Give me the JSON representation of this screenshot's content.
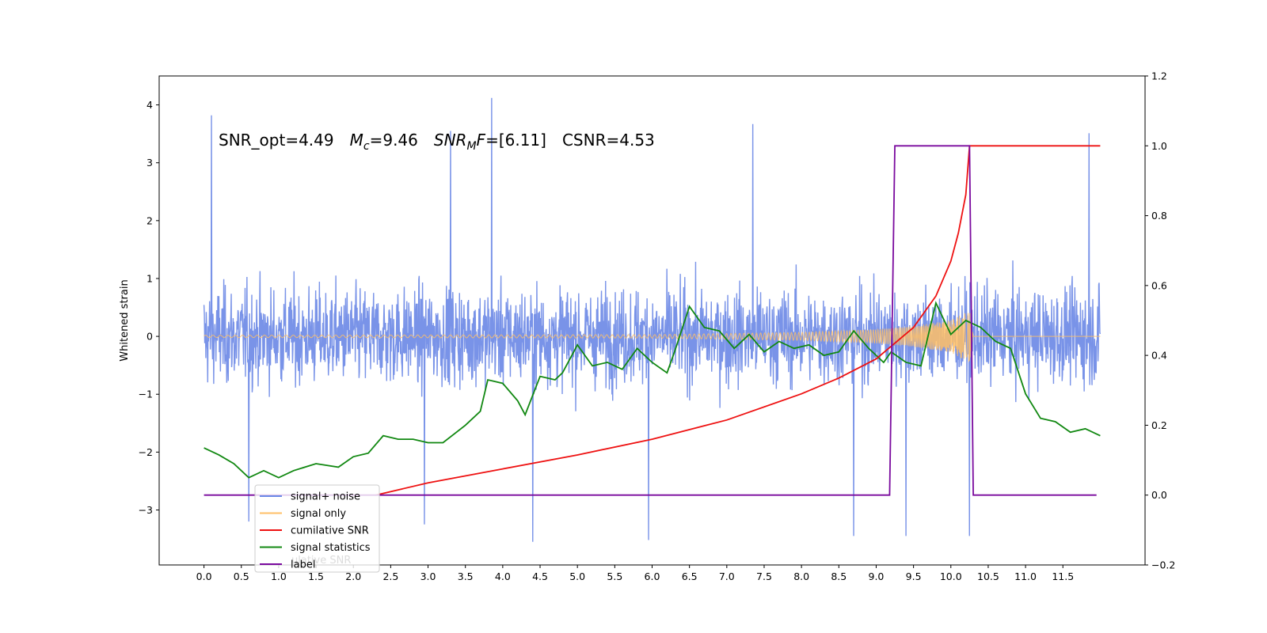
{
  "chart_data": {
    "type": "line",
    "ylabel": "Whitened strain",
    "annotation": {
      "snr_opt_label": "SNR_opt=4.49",
      "mc_symbol": "M",
      "mc_sub": "c",
      "mc_value": "=9.46",
      "snrmf_symbol": "SNR",
      "snrmf_sub": "M",
      "snrmf_tail": "F",
      "snrmf_value": "=[6.11]",
      "csnr_label": "CSNR=4.53"
    },
    "xlim": [
      -0.6,
      12.6
    ],
    "ylim_left": [
      -3.95,
      4.5
    ],
    "ylim_right": [
      -0.2,
      1.2
    ],
    "xticks": [
      0.0,
      0.5,
      1.0,
      1.5,
      2.0,
      2.5,
      3.0,
      3.5,
      4.0,
      4.5,
      5.0,
      5.5,
      6.0,
      6.5,
      7.0,
      7.5,
      8.0,
      8.5,
      9.0,
      9.5,
      10.0,
      10.5,
      11.0,
      11.5
    ],
    "xtick_labels": [
      "0.0",
      "0.5",
      "1.0",
      "1.5",
      "2.0",
      "2.5",
      "3.0",
      "3.5",
      "4.0",
      "4.5",
      "5.0",
      "5.5",
      "6.0",
      "6.5",
      "7.0",
      "7.5",
      "8.0",
      "8.5",
      "9.0",
      "9.5",
      "10.0",
      "10.5",
      "11.0",
      "11.5"
    ],
    "yticks_left": [
      -3,
      -2,
      -1,
      0,
      1,
      2,
      3,
      4
    ],
    "ytick_labels_left": [
      "−3",
      "−2",
      "−1",
      "0",
      "1",
      "2",
      "3",
      "4"
    ],
    "yticks_right": [
      -0.2,
      0.0,
      0.2,
      0.4,
      0.6,
      0.8,
      1.0,
      1.2
    ],
    "ytick_labels_right": [
      "−0.2",
      "0.0",
      "0.2",
      "0.4",
      "0.6",
      "0.8",
      "1.0",
      "1.2"
    ],
    "legend_position": "lower-left",
    "legend": [
      {
        "label": "signal+ noise",
        "color": "#6a87e6"
      },
      {
        "label": "signal only",
        "color": "#ffbf66"
      },
      {
        "label": "cumilative SNR",
        "color": "#ee1111"
      },
      {
        "label": "signal statistics",
        "color": "#118811"
      },
      {
        "label": "label",
        "color": "#7a0a9e"
      }
    ],
    "legend_ghost_text": "ulative SNR",
    "series": [
      {
        "name": "signal+ noise",
        "axis": "left",
        "color": "#6a87e6",
        "x_range": [
          0.0,
          12.0
        ],
        "envelope_typical": [
          -1.6,
          1.6
        ],
        "peaks": [
          {
            "x": 0.1,
            "y": 3.82
          },
          {
            "x": 3.85,
            "y": 4.12
          },
          {
            "x": 3.3,
            "y": 3.55
          },
          {
            "x": 7.35,
            "y": 3.67
          },
          {
            "x": 11.85,
            "y": 3.51
          },
          {
            "x": 4.4,
            "y": -3.55
          },
          {
            "x": 5.95,
            "y": -3.52
          },
          {
            "x": 9.4,
            "y": -3.45
          },
          {
            "x": 10.25,
            "y": -3.45
          },
          {
            "x": 8.7,
            "y": -3.45
          },
          {
            "x": 2.95,
            "y": -3.25
          },
          {
            "x": 0.6,
            "y": -3.2
          }
        ]
      },
      {
        "name": "signal only",
        "axis": "left",
        "color": "#ffbf66",
        "x": [
          0.0,
          6.0,
          7.0,
          8.0,
          9.0,
          9.5,
          10.0,
          10.25,
          10.3,
          12.0
        ],
        "envelope": [
          0.02,
          0.03,
          0.05,
          0.07,
          0.12,
          0.18,
          0.28,
          0.45,
          0.0,
          0.0
        ]
      },
      {
        "name": "cumilative SNR",
        "axis": "right",
        "color": "#ee1111",
        "x": [
          2.3,
          3.0,
          4.0,
          5.0,
          6.0,
          7.0,
          8.0,
          8.5,
          9.0,
          9.5,
          9.8,
          10.0,
          10.1,
          10.2,
          10.25,
          10.28,
          12.0
        ],
        "y": [
          0.0,
          0.035,
          0.075,
          0.115,
          0.16,
          0.215,
          0.29,
          0.335,
          0.39,
          0.48,
          0.57,
          0.67,
          0.75,
          0.86,
          1.0,
          1.0,
          1.0
        ]
      },
      {
        "name": "signal statistics",
        "axis": "right",
        "color": "#118811",
        "x": [
          0.0,
          0.2,
          0.4,
          0.6,
          0.8,
          1.0,
          1.2,
          1.5,
          1.8,
          2.0,
          2.2,
          2.4,
          2.6,
          2.8,
          3.0,
          3.2,
          3.5,
          3.7,
          3.8,
          4.0,
          4.2,
          4.3,
          4.5,
          4.7,
          4.8,
          5.0,
          5.2,
          5.4,
          5.6,
          5.8,
          6.0,
          6.2,
          6.3,
          6.5,
          6.7,
          6.9,
          7.1,
          7.3,
          7.5,
          7.7,
          7.9,
          8.1,
          8.3,
          8.5,
          8.7,
          8.9,
          9.1,
          9.2,
          9.4,
          9.6,
          9.8,
          10.0,
          10.2,
          10.4,
          10.6,
          10.8,
          11.0,
          11.2,
          11.4,
          11.6,
          11.8,
          12.0
        ],
        "y": [
          0.135,
          0.115,
          0.09,
          0.05,
          0.07,
          0.05,
          0.07,
          0.09,
          0.08,
          0.11,
          0.12,
          0.17,
          0.16,
          0.16,
          0.15,
          0.15,
          0.2,
          0.24,
          0.33,
          0.32,
          0.27,
          0.23,
          0.34,
          0.33,
          0.35,
          0.43,
          0.37,
          0.38,
          0.36,
          0.42,
          0.38,
          0.35,
          0.41,
          0.54,
          0.48,
          0.47,
          0.42,
          0.46,
          0.41,
          0.44,
          0.42,
          0.43,
          0.4,
          0.41,
          0.47,
          0.42,
          0.38,
          0.41,
          0.38,
          0.37,
          0.55,
          0.46,
          0.5,
          0.48,
          0.44,
          0.42,
          0.29,
          0.22,
          0.21,
          0.18,
          0.19,
          0.17
        ]
      },
      {
        "name": "label",
        "axis": "right",
        "color": "#7a0a9e",
        "x": [
          0.0,
          9.18,
          9.25,
          10.25,
          10.3,
          11.95
        ],
        "y": [
          0.0,
          0.0,
          1.0,
          1.0,
          0.0,
          0.0
        ]
      }
    ]
  }
}
